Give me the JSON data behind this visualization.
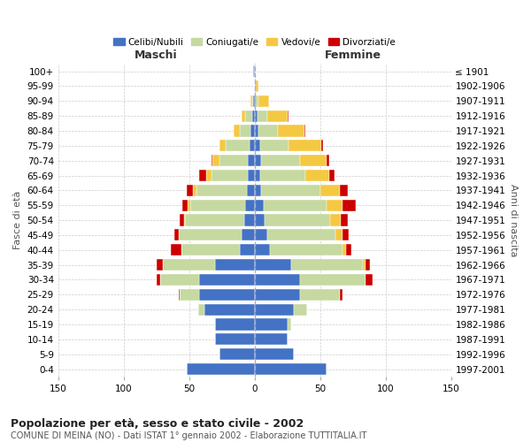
{
  "age_groups": [
    "0-4",
    "5-9",
    "10-14",
    "15-19",
    "20-24",
    "25-29",
    "30-34",
    "35-39",
    "40-44",
    "45-49",
    "50-54",
    "55-59",
    "60-64",
    "65-69",
    "70-74",
    "75-79",
    "80-84",
    "85-89",
    "90-94",
    "95-99",
    "100+"
  ],
  "birth_years": [
    "1997-2001",
    "1992-1996",
    "1987-1991",
    "1982-1986",
    "1977-1981",
    "1972-1976",
    "1967-1971",
    "1962-1966",
    "1957-1961",
    "1952-1956",
    "1947-1951",
    "1942-1946",
    "1937-1941",
    "1932-1936",
    "1927-1931",
    "1922-1926",
    "1917-1921",
    "1912-1916",
    "1907-1911",
    "1902-1906",
    "≤ 1901"
  ],
  "male": {
    "celibe": [
      52,
      27,
      30,
      30,
      38,
      42,
      42,
      30,
      11,
      10,
      8,
      7,
      6,
      5,
      5,
      4,
      3,
      2,
      1,
      0,
      1
    ],
    "coniugato": [
      0,
      0,
      0,
      0,
      5,
      15,
      30,
      40,
      45,
      48,
      45,
      42,
      38,
      28,
      22,
      18,
      8,
      5,
      1,
      0,
      0
    ],
    "vedovo": [
      0,
      0,
      0,
      0,
      0,
      0,
      0,
      0,
      0,
      0,
      1,
      2,
      3,
      4,
      5,
      5,
      5,
      3,
      1,
      0,
      0
    ],
    "divorziato": [
      0,
      0,
      0,
      0,
      0,
      1,
      3,
      5,
      8,
      3,
      3,
      4,
      5,
      5,
      1,
      0,
      0,
      0,
      0,
      0,
      0
    ]
  },
  "female": {
    "nubile": [
      55,
      30,
      25,
      25,
      30,
      35,
      35,
      28,
      12,
      10,
      8,
      7,
      5,
      4,
      5,
      4,
      3,
      2,
      1,
      1,
      0
    ],
    "coniugata": [
      0,
      0,
      0,
      3,
      10,
      30,
      50,
      55,
      55,
      52,
      50,
      48,
      45,
      35,
      30,
      22,
      15,
      8,
      2,
      0,
      0
    ],
    "vedova": [
      0,
      0,
      0,
      0,
      0,
      0,
      0,
      2,
      3,
      5,
      8,
      12,
      15,
      18,
      20,
      25,
      20,
      15,
      8,
      2,
      1
    ],
    "divorziata": [
      0,
      0,
      0,
      0,
      0,
      2,
      5,
      3,
      4,
      5,
      5,
      10,
      6,
      4,
      2,
      1,
      1,
      1,
      0,
      0,
      0
    ]
  },
  "colors": {
    "celibe": "#4472c4",
    "coniugato": "#c5d9a0",
    "vedovo": "#f5c842",
    "divorziato": "#cc0000"
  },
  "xlim": 150,
  "title": "Popolazione per età, sesso e stato civile - 2002",
  "subtitle": "COMUNE DI MEINA (NO) - Dati ISTAT 1° gennaio 2002 - Elaborazione TUTTITALIA.IT",
  "ylabel_left": "Fasce di età",
  "ylabel_right": "Anni di nascita",
  "xlabel_male": "Maschi",
  "xlabel_female": "Femmine",
  "legend_labels": [
    "Celibi/Nubili",
    "Coniugati/e",
    "Vedovi/e",
    "Divorziati/e"
  ],
  "background_color": "#ffffff",
  "grid_color": "#cccccc"
}
